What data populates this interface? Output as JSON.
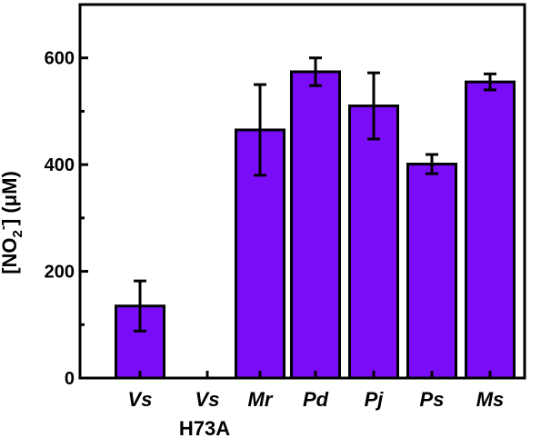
{
  "chart_data": {
    "type": "bar",
    "title": "",
    "xlabel": "",
    "ylabel": {
      "prefix": "[NO",
      "sub": "2",
      "sup": "-",
      "suffix": "] (μM)"
    },
    "ylim": [
      0,
      700
    ],
    "yticks": [
      0,
      200,
      400,
      600
    ],
    "ytick_labels": [
      "0",
      "200",
      "400",
      "600"
    ],
    "categories": [
      {
        "label": "Vs",
        "sublabel": ""
      },
      {
        "label": "Vs",
        "sublabel": "H73A"
      },
      {
        "label": "Mr",
        "sublabel": ""
      },
      {
        "label": "Pd",
        "sublabel": ""
      },
      {
        "label": "Pj",
        "sublabel": ""
      },
      {
        "label": "Ps",
        "sublabel": ""
      },
      {
        "label": "Ms",
        "sublabel": ""
      }
    ],
    "values": [
      135,
      0,
      465,
      574,
      510,
      401,
      555
    ],
    "errors": [
      47,
      0,
      85,
      26,
      62,
      18,
      15
    ],
    "bar_color": "#7b0cf7",
    "edge_color": "#000000",
    "grid": false
  }
}
